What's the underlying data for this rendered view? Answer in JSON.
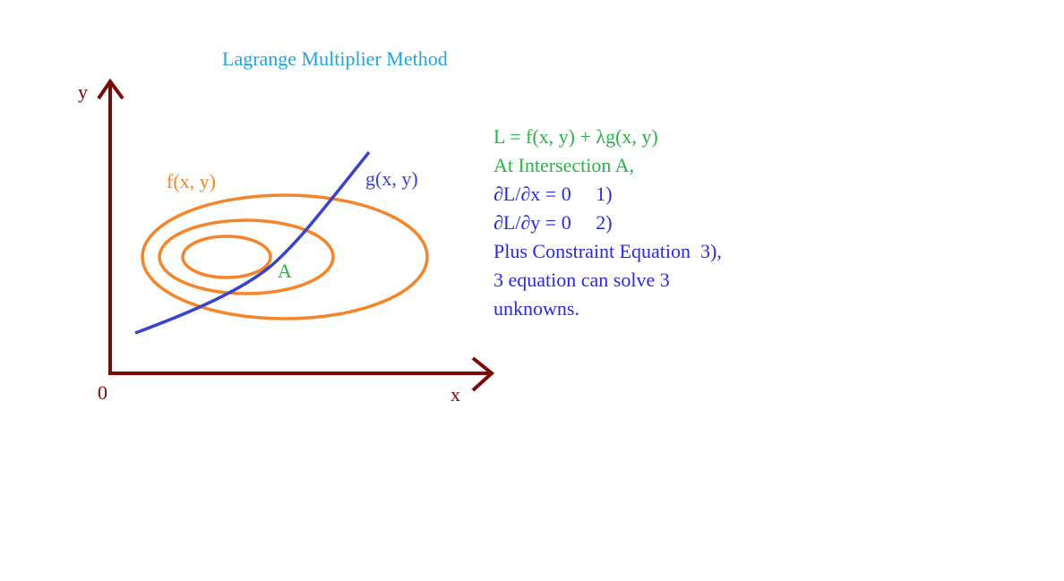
{
  "title": "Lagrange Multiplier Method",
  "axes": {
    "y_label": "y",
    "x_label": "x",
    "origin_label": "0"
  },
  "labels": {
    "f": "f(x, y)",
    "g": "g(x, y)",
    "point": "A"
  },
  "equations": [
    {
      "text": "L = f(x, y) + λg(x, y)",
      "color": "#2fae4a"
    },
    {
      "text": "At Intersection A,",
      "color": "#2fae4a"
    },
    {
      "text": "∂L/∂x = 0     1)",
      "color": "#2a2adb"
    },
    {
      "text": "∂L/∂y = 0     2)",
      "color": "#2a2adb"
    },
    {
      "text": "Plus Constraint Equation  3),",
      "color": "#2a2adb"
    },
    {
      "text": "3 equation can solve 3",
      "color": "#2a2adb"
    },
    {
      "text": "unknowns.",
      "color": "#2a2adb"
    }
  ],
  "colors": {
    "title": "#1ea5e0",
    "axis": "#7a0a0a",
    "contour": "#f5852a",
    "constraint": "#3a44c8",
    "point": "#2fae4a"
  }
}
